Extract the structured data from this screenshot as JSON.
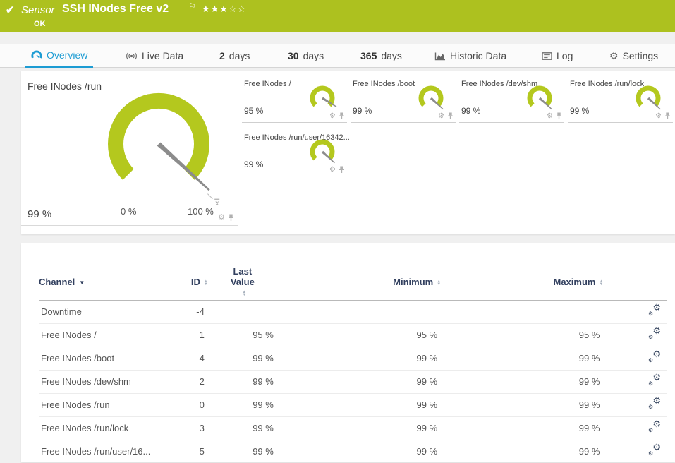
{
  "colors": {
    "header_bg": "#adc11f",
    "gauge_green": "#b4c81e",
    "needle_gray": "#8c8c8c",
    "accent_blue": "#1d9cd3",
    "table_header_navy": "#32405f"
  },
  "header": {
    "status_check": "✔",
    "kind_label": "Sensor",
    "title": "SSH INodes Free v2",
    "flag": "⚐",
    "rating": {
      "filled": 3,
      "total": 5
    },
    "status": "OK"
  },
  "tabs": [
    {
      "icon": "gauge-icon",
      "label": "Overview",
      "active": true
    },
    {
      "icon": "live-icon",
      "label": "Live Data",
      "active": false
    },
    {
      "prefix": "2",
      "label": "days",
      "active": false
    },
    {
      "prefix": "30",
      "label": "days",
      "active": false
    },
    {
      "prefix": "365",
      "label": "days",
      "active": false
    },
    {
      "icon": "area-chart-icon",
      "label": "Historic Data",
      "active": false
    },
    {
      "icon": "log-icon",
      "label": "Log",
      "active": false
    },
    {
      "icon": "gear-icon",
      "label": "Settings",
      "active": false
    }
  ],
  "gauges": {
    "primary": {
      "title": "Free INodes /run",
      "value": 99,
      "value_label": "99 %",
      "min_label": "0 %",
      "max_label": "100 %",
      "mean_marker": "x"
    },
    "small": [
      {
        "title": "Free INodes /",
        "value": 95,
        "value_label": "95 %"
      },
      {
        "title": "Free INodes /boot",
        "value": 99,
        "value_label": "99 %"
      },
      {
        "title": "Free INodes /dev/shm",
        "value": 99,
        "value_label": "99 %"
      },
      {
        "title": "Free INodes /run/lock",
        "value": 99,
        "value_label": "99 %"
      },
      {
        "title": "Free INodes /run/user/16342...",
        "value": 99,
        "value_label": "99 %"
      }
    ]
  },
  "chart_data": {
    "type": "gauge-set",
    "gauges": [
      {
        "title": "Free INodes /run",
        "value_pct": 99,
        "range": [
          0,
          100
        ]
      },
      {
        "title": "Free INodes /",
        "value_pct": 95,
        "range": [
          0,
          100
        ]
      },
      {
        "title": "Free INodes /boot",
        "value_pct": 99,
        "range": [
          0,
          100
        ]
      },
      {
        "title": "Free INodes /dev/shm",
        "value_pct": 99,
        "range": [
          0,
          100
        ]
      },
      {
        "title": "Free INodes /run/lock",
        "value_pct": 99,
        "range": [
          0,
          100
        ]
      },
      {
        "title": "Free INodes /run/user/16342...",
        "value_pct": 99,
        "range": [
          0,
          100
        ]
      }
    ]
  },
  "table": {
    "headers": {
      "channel": "Channel",
      "id": "ID",
      "last": "Last Value",
      "min": "Minimum",
      "max": "Maximum"
    },
    "rows": [
      {
        "channel": "Downtime",
        "id": "-4",
        "last": "",
        "min": "",
        "max": ""
      },
      {
        "channel": "Free INodes /",
        "id": "1",
        "last": "95 %",
        "min": "95 %",
        "max": "95 %"
      },
      {
        "channel": "Free INodes /boot",
        "id": "4",
        "last": "99 %",
        "min": "99 %",
        "max": "99 %"
      },
      {
        "channel": "Free INodes /dev/shm",
        "id": "2",
        "last": "99 %",
        "min": "99 %",
        "max": "99 %"
      },
      {
        "channel": "Free INodes /run",
        "id": "0",
        "last": "99 %",
        "min": "99 %",
        "max": "99 %"
      },
      {
        "channel": "Free INodes /run/lock",
        "id": "3",
        "last": "99 %",
        "min": "99 %",
        "max": "99 %"
      },
      {
        "channel": "Free INodes /run/user/16...",
        "id": "5",
        "last": "99 %",
        "min": "99 %",
        "max": "99 %"
      }
    ]
  }
}
